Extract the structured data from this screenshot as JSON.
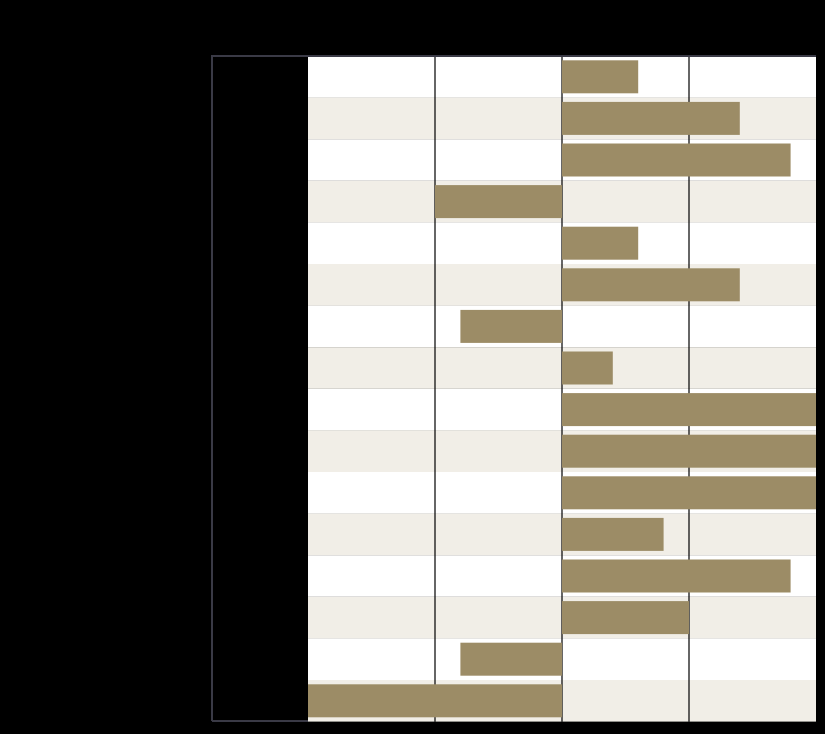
{
  "chart_data": {
    "type": "bar",
    "orientation": "horizontal",
    "title": "",
    "xlabel": "",
    "ylabel": "",
    "xlim": [
      -2,
      2
    ],
    "categories": [
      "",
      "",
      "",
      "",
      "",
      "",
      "",
      "",
      "",
      "",
      "",
      "",
      "",
      "",
      "",
      ""
    ],
    "values": [
      0.6,
      1.4,
      1.8,
      -1,
      0.6,
      1.4,
      -0.8,
      0.4,
      2,
      2,
      2,
      0.8,
      1.8,
      1,
      -0.8,
      -2
    ],
    "grid": true,
    "legend": "none",
    "colors": {
      "background": "#000000",
      "plot_area": "#ffffff",
      "band_alt": "#f1eee7",
      "bar": "#9c8c66",
      "gridline": "#000000",
      "frame": "#3a3a46",
      "label_panel": "#000000"
    }
  }
}
